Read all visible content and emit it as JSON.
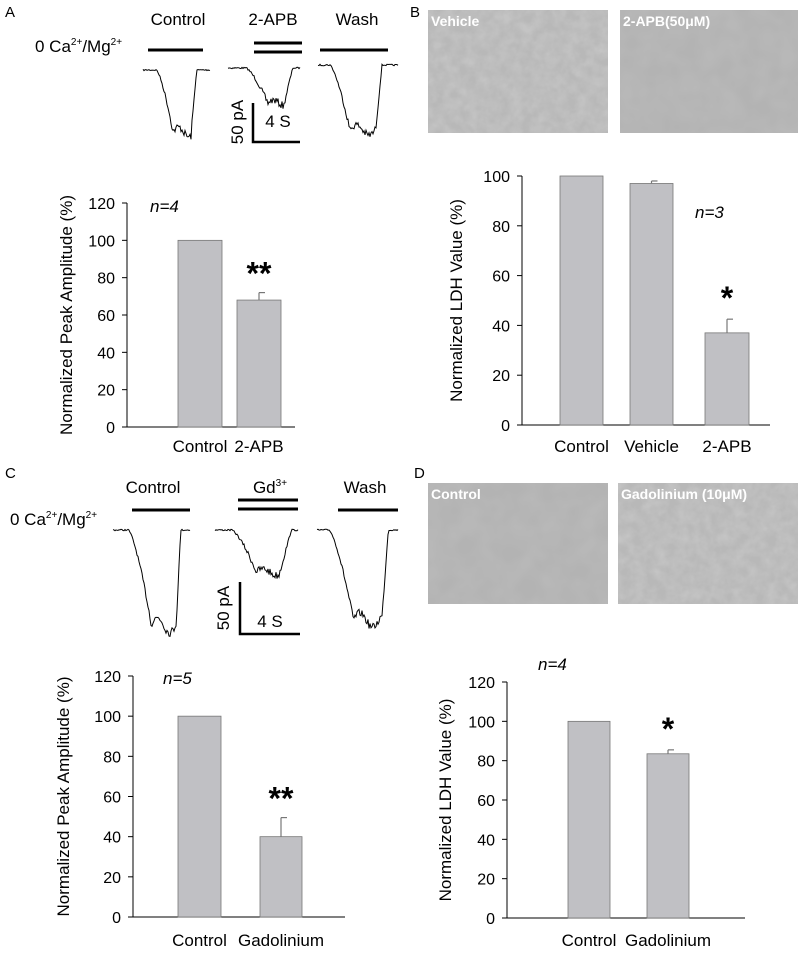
{
  "figure": {
    "panels": [
      "A",
      "B",
      "C",
      "D"
    ],
    "traces": [
      {
        "conditions": [
          [
            "Control"
          ],
          [
            "2-APB"
          ],
          [
            "Wash"
          ]
        ],
        "ion": [
          "0 Ca",
          "2+",
          "/Mg",
          "2+"
        ],
        "scale_current": "50 pA",
        "scale_time": "4 S"
      },
      {
        "conditions": [
          [
            "Control"
          ],
          [
            "Gd",
            "3+"
          ],
          [
            "Wash"
          ]
        ],
        "ion": [
          "0 Ca",
          "2+",
          "/Mg",
          "2+"
        ],
        "scale_current": "50 pA",
        "scale_time": "4 S"
      }
    ],
    "images": [
      {
        "labels": [
          "Vehicle",
          "2-APB(50μM)"
        ]
      },
      {
        "labels": [
          "Control",
          "Gadolinium (10μM)"
        ]
      }
    ]
  },
  "chart_data": [
    {
      "type": "bar",
      "ylabel": "Normalized Peak Amplitude (%)",
      "categories": [
        "Control",
        "2-APB"
      ],
      "values": [
        100,
        68
      ],
      "errors": [
        null,
        4
      ],
      "significance": [
        null,
        "**"
      ],
      "n_label": "n=4",
      "color": "#c0c0c4",
      "ylim": [
        0,
        120
      ],
      "yticks": [
        0,
        20,
        40,
        60,
        80,
        100,
        120
      ]
    },
    {
      "type": "bar",
      "ylabel": "Normalized LDH Value (%)",
      "categories": [
        "Control",
        "Vehicle",
        "2-APB"
      ],
      "values": [
        100,
        97,
        37
      ],
      "errors": [
        null,
        1,
        5.5
      ],
      "significance": [
        null,
        null,
        "*"
      ],
      "n_label": "n=3",
      "color": "#c0c0c4",
      "ylim": [
        0,
        100
      ],
      "yticks": [
        0,
        20,
        40,
        60,
        80,
        100
      ]
    },
    {
      "type": "bar",
      "ylabel": "Normalized Peak Amplitude (%)",
      "categories": [
        "Control",
        "Gadolinium"
      ],
      "values": [
        100,
        40
      ],
      "errors": [
        null,
        9.5
      ],
      "significance": [
        null,
        "**"
      ],
      "n_label": "n=5",
      "color": "#c0c0c4",
      "ylim": [
        0,
        120
      ],
      "yticks": [
        0,
        20,
        40,
        60,
        80,
        100,
        120
      ]
    },
    {
      "type": "bar",
      "ylabel": "Normalized LDH Value (%)",
      "categories": [
        "Control",
        "Gadolinium"
      ],
      "values": [
        100,
        83.5
      ],
      "errors": [
        null,
        2
      ],
      "significance": [
        null,
        "*"
      ],
      "n_label": "n=4",
      "color": "#c0c0c4",
      "ylim": [
        0,
        120
      ],
      "yticks": [
        0,
        20,
        40,
        60,
        80,
        100,
        120
      ]
    }
  ]
}
